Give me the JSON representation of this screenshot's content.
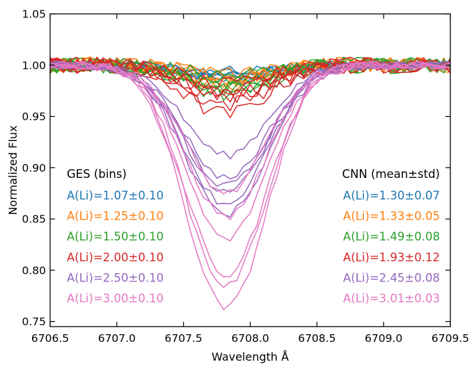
{
  "chart_data": {
    "type": "line",
    "xlabel": "Wavelength Å",
    "ylabel": "Normalized Flux",
    "xlim": [
      6706.5,
      6709.5
    ],
    "ylim": [
      0.745,
      1.05
    ],
    "xticks": [
      "6706.5",
      "6707.0",
      "6707.5",
      "6708.0",
      "6708.5",
      "6709.0",
      "6709.5"
    ],
    "yticks": [
      "0.75",
      "0.80",
      "0.85",
      "0.90",
      "0.95",
      "1.00",
      "1.05"
    ],
    "grid": false,
    "line_center": 6707.82,
    "legend_left": {
      "title": "GES (bins)",
      "entries": [
        {
          "label": "A(Li)=1.07±0.10",
          "color": "#1f77b4"
        },
        {
          "label": "A(Li)=1.25±0.10",
          "color": "#ff7f0e"
        },
        {
          "label": "A(Li)=1.50±0.10",
          "color": "#2ca02c"
        },
        {
          "label": "A(Li)=2.00±0.10",
          "color": "#d62728"
        },
        {
          "label": "A(Li)=2.50±0.10",
          "color": "#9467bd"
        },
        {
          "label": "A(Li)=3.00±0.10",
          "color": "#e377c2"
        }
      ]
    },
    "legend_right": {
      "title": "CNN (mean±std)",
      "entries": [
        {
          "label": "A(Li)=1.30±0.07",
          "color": "#1f77b4"
        },
        {
          "label": "A(Li)=1.33±0.05",
          "color": "#ff7f0e"
        },
        {
          "label": "A(Li)=1.49±0.08",
          "color": "#2ca02c"
        },
        {
          "label": "A(Li)=1.93±0.12",
          "color": "#d62728"
        },
        {
          "label": "A(Li)=2.45±0.08",
          "color": "#9467bd"
        },
        {
          "label": "A(Li)=3.01±0.03",
          "color": "#e377c2"
        }
      ]
    },
    "series": [
      {
        "group": "A(Li)=1.07±0.10",
        "color": "#1f77b4",
        "depths": [
          0.008,
          0.012,
          0.01,
          0.015,
          0.005,
          0.011
        ],
        "width": 0.32,
        "noise": 0.005
      },
      {
        "group": "A(Li)=1.25±0.10",
        "color": "#ff7f0e",
        "depths": [
          0.012,
          0.018,
          0.01,
          0.02,
          0.015,
          0.009
        ],
        "width": 0.3,
        "noise": 0.008
      },
      {
        "group": "A(Li)=1.50±0.10",
        "color": "#2ca02c",
        "depths": [
          0.018,
          0.022,
          0.015,
          0.028,
          0.01,
          0.024
        ],
        "width": 0.3,
        "noise": 0.008
      },
      {
        "group": "A(Li)=2.00±0.10",
        "color": "#d62728",
        "depths": [
          0.048,
          0.038,
          0.03,
          0.02,
          0.028,
          0.025
        ],
        "width": 0.3,
        "noise": 0.008
      },
      {
        "group": "A(Li)=2.50±0.10",
        "color": "#9467bd",
        "depths": [
          0.088,
          0.11,
          0.118,
          0.135,
          0.145,
          0.125
        ],
        "width": 0.31,
        "noise": 0.004
      },
      {
        "group": "A(Li)=3.00±0.10",
        "color": "#e377c2",
        "depths": [
          0.237,
          0.205,
          0.17,
          0.148,
          0.125,
          0.215
        ],
        "width": 0.3,
        "noise": 0.004
      }
    ]
  }
}
